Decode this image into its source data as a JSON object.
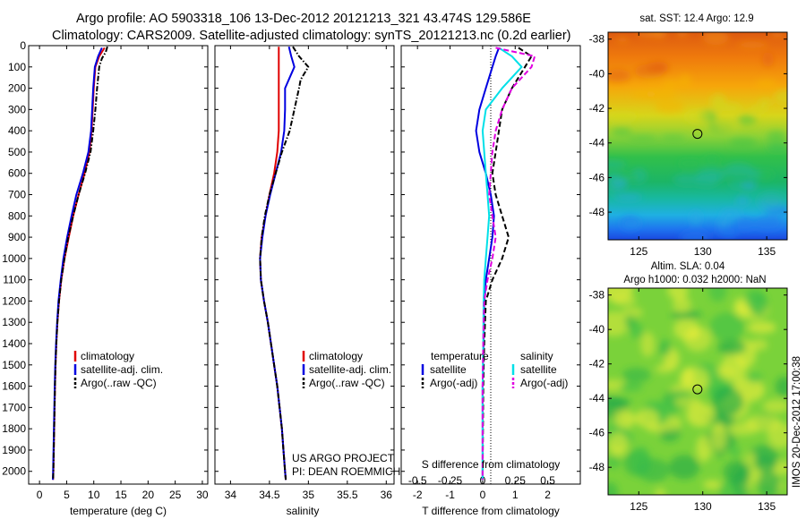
{
  "header": {
    "line1": "Argo profile: AO 5903318_106 13-Dec-2012 20121213_321 43.474S 129.586E",
    "line2": "Climatology: CARS2009. Satellite-adjusted climatology: synTS_20121213.nc (0.2d earlier)"
  },
  "credits": {
    "project": "US ARGO PROJECT",
    "pi": "PI: DEAN ROEMMICH",
    "stamp": "IMOS 20-Dec-2012 17:00:38"
  },
  "colors": {
    "climatology": "#e00000",
    "satellite": "#0000e0",
    "argo": "#000000",
    "cyan": "#00e0e8",
    "magenta": "#e000e0"
  },
  "chart_data": [
    {
      "id": "temperature",
      "type": "line",
      "xlabel": "temperature (deg C)",
      "ylabel": "",
      "xlim": [
        -2,
        31
      ],
      "ylim": [
        2060,
        0
      ],
      "xticks": [
        "0",
        "5",
        "10",
        "15",
        "20",
        "25",
        "30"
      ],
      "yticks": [
        "0",
        "100",
        "200",
        "300",
        "400",
        "500",
        "600",
        "700",
        "800",
        "900",
        "1000",
        "1100",
        "1200",
        "1300",
        "1400",
        "1500",
        "1600",
        "1700",
        "1800",
        "1900",
        "2000"
      ],
      "legend": [
        "climatology",
        "satellite-adj. clim.",
        "Argo(..raw -QC)"
      ],
      "series": [
        {
          "name": "climatology",
          "style": "solid",
          "color": "#e00000",
          "y": [
            10,
            50,
            100,
            200,
            300,
            400,
            500,
            600,
            700,
            800,
            900,
            1000,
            1100,
            1200,
            1300,
            1400,
            1500,
            1600,
            1800,
            2000,
            2040
          ],
          "x": [
            12.0,
            11.0,
            10.3,
            10.0,
            9.8,
            9.6,
            9.2,
            8.3,
            7.2,
            6.2,
            5.4,
            4.6,
            4.0,
            3.6,
            3.3,
            3.1,
            2.95,
            2.85,
            2.7,
            2.55,
            2.5
          ]
        },
        {
          "name": "satellite-adj. clim.",
          "style": "solid",
          "color": "#0000e0",
          "y": [
            10,
            50,
            100,
            200,
            300,
            400,
            500,
            600,
            700,
            800,
            900,
            1000,
            1100,
            1200,
            1300,
            1400,
            1500,
            1600,
            1800,
            2000,
            2040
          ],
          "x": [
            11.5,
            10.8,
            10.2,
            9.9,
            9.7,
            9.5,
            9.0,
            8.0,
            6.8,
            5.9,
            5.1,
            4.4,
            3.9,
            3.5,
            3.25,
            3.05,
            2.9,
            2.8,
            2.65,
            2.5,
            2.45
          ]
        },
        {
          "name": "Argo(..raw -QC)",
          "style": "dashdot",
          "color": "#000000",
          "y": [
            5,
            30,
            60,
            100,
            200,
            300,
            400,
            500,
            600,
            700,
            800,
            900,
            1000,
            1100,
            1200,
            1300,
            1400,
            1500,
            1600,
            1800,
            2000,
            2040
          ],
          "x": [
            12.5,
            12.2,
            11.5,
            11.0,
            10.6,
            10.3,
            9.9,
            9.4,
            8.4,
            7.2,
            6.2,
            5.3,
            4.6,
            4.0,
            3.6,
            3.3,
            3.1,
            2.95,
            2.85,
            2.7,
            2.55,
            2.5
          ]
        }
      ]
    },
    {
      "id": "salinity",
      "type": "line",
      "xlabel": "salinity",
      "ylabel": "",
      "xlim": [
        33.8,
        36.1
      ],
      "ylim": [
        2060,
        0
      ],
      "xticks": [
        "34",
        "34.5",
        "35",
        "35.5",
        "36"
      ],
      "legend": [
        "climatology",
        "satellite-adj. clim.",
        "Argo(..raw -QC)"
      ],
      "series": [
        {
          "name": "climatology",
          "style": "solid",
          "color": "#e00000",
          "y": [
            5,
            100,
            200,
            300,
            400,
            500,
            600,
            700,
            800,
            900,
            1000,
            1100,
            1200,
            1300,
            1400,
            1500,
            1600,
            1700,
            1800,
            1900,
            2000,
            2040
          ],
          "x": [
            34.62,
            34.62,
            34.62,
            34.62,
            34.62,
            34.6,
            34.56,
            34.5,
            34.45,
            34.4,
            34.38,
            34.39,
            34.43,
            34.48,
            34.52,
            34.56,
            34.6,
            34.63,
            34.66,
            34.68,
            34.7,
            34.71
          ]
        },
        {
          "name": "satellite-adj. clim.",
          "style": "solid",
          "color": "#0000e0",
          "y": [
            5,
            50,
            100,
            150,
            200,
            300,
            400,
            500,
            600,
            700,
            800,
            900,
            1000,
            1100,
            1200,
            1300,
            1400,
            1500,
            1600,
            1700,
            1800,
            1900,
            2000,
            2040
          ],
          "x": [
            34.75,
            34.78,
            34.82,
            34.76,
            34.7,
            34.7,
            34.69,
            34.65,
            34.58,
            34.51,
            34.45,
            34.41,
            34.38,
            34.39,
            34.43,
            34.48,
            34.52,
            34.56,
            34.6,
            34.63,
            34.66,
            34.68,
            34.7,
            34.71
          ]
        },
        {
          "name": "Argo(..raw -QC)",
          "style": "dashdot",
          "color": "#000000",
          "y": [
            5,
            50,
            100,
            130,
            160,
            200,
            300,
            400,
            500,
            600,
            700,
            800,
            900,
            1000,
            1100,
            1200,
            1300,
            1400,
            1500,
            1600,
            1700,
            1800,
            1900,
            2000,
            2040
          ],
          "x": [
            34.8,
            34.88,
            35.0,
            34.95,
            34.9,
            34.88,
            34.82,
            34.76,
            34.66,
            34.58,
            34.5,
            34.44,
            34.4,
            34.38,
            34.39,
            34.43,
            34.48,
            34.52,
            34.56,
            34.6,
            34.63,
            34.66,
            34.68,
            34.7,
            34.71
          ]
        }
      ]
    },
    {
      "id": "difference",
      "type": "line",
      "xlabel": "T difference from climatology",
      "x2label": "S difference from climatology",
      "xlim": [
        -2.5,
        3.0
      ],
      "ylim": [
        2060,
        0
      ],
      "xticks": [
        "-2",
        "-1",
        "0",
        "1",
        "2"
      ],
      "x2ticks": [
        "-0.5",
        "-0.25",
        "0",
        "0.25",
        "0.5"
      ],
      "legend_groups": [
        "temperature",
        "salinity"
      ],
      "legend": [
        "satellite",
        "Argo(-adj)",
        "satellite",
        "Argo(-adj)"
      ],
      "series": [
        {
          "name": "satellite",
          "quantity": "temperature",
          "style": "solid",
          "color": "#0000e0",
          "y": [
            10,
            50,
            100,
            200,
            300,
            400,
            500,
            600,
            700,
            800,
            900,
            1000,
            1100,
            1200,
            1400,
            1600,
            2040
          ],
          "t": [
            0.5,
            0.4,
            0.3,
            0.1,
            -0.1,
            -0.2,
            -0.1,
            0.1,
            0.25,
            0.35,
            0.3,
            0.2,
            0.1,
            0.05,
            0.03,
            0.0,
            0.0
          ]
        },
        {
          "name": "Argo(-adj)",
          "quantity": "temperature",
          "style": "dashed",
          "color": "#000000",
          "y": [
            10,
            50,
            100,
            200,
            300,
            400,
            500,
            600,
            700,
            800,
            900,
            1000,
            1100,
            1200,
            1400,
            1600,
            2040
          ],
          "t": [
            1.1,
            1.5,
            1.3,
            0.9,
            0.6,
            0.5,
            0.4,
            0.3,
            0.4,
            0.6,
            0.8,
            0.6,
            0.3,
            0.1,
            0.05,
            0.02,
            0.0
          ]
        },
        {
          "name": "satellite",
          "quantity": "salinity",
          "style": "solid",
          "color": "#00e0e8",
          "y": [
            10,
            50,
            100,
            200,
            300,
            400,
            500,
            600,
            700,
            800,
            900,
            1000,
            1100,
            1200,
            1400,
            1600,
            2040
          ],
          "t": [
            0.5,
            0.9,
            1.2,
            0.6,
            0.1,
            0.0,
            0.05,
            0.1,
            0.15,
            0.2,
            0.15,
            0.1,
            0.05,
            0.03,
            0.02,
            0.0,
            0.0
          ]
        },
        {
          "name": "Argo(-adj)",
          "quantity": "salinity",
          "style": "dashed",
          "color": "#e000e0",
          "y": [
            10,
            50,
            100,
            200,
            300,
            400,
            500,
            600,
            700,
            800,
            900,
            1000,
            1100,
            1200,
            1400,
            1600,
            2040
          ],
          "t": [
            0.4,
            1.6,
            1.5,
            0.9,
            0.6,
            0.4,
            0.3,
            0.25,
            0.2,
            0.3,
            0.4,
            0.3,
            0.15,
            0.05,
            0.02,
            0.0,
            0.0
          ]
        }
      ]
    },
    {
      "id": "sst_map",
      "type": "heatmap",
      "title": "sat. SST: 12.4  Argo: 12.9",
      "xticks": [
        "125",
        "130",
        "135"
      ],
      "yticks": [
        "-38",
        "-40",
        "-42",
        "-44",
        "-46",
        "-48"
      ],
      "xlim": [
        122.6,
        136.6
      ],
      "ylim": [
        -49.6,
        -37.6
      ],
      "marker": {
        "lon": 129.586,
        "lat": -43.474
      }
    },
    {
      "id": "sla_map",
      "type": "heatmap",
      "title": "Altim. SLA: 0.04",
      "subtitle": "Argo h1000: 0.032 h2000: NaN",
      "xticks": [
        "125",
        "130",
        "135"
      ],
      "yticks": [
        "-38",
        "-40",
        "-42",
        "-44",
        "-46",
        "-48"
      ],
      "xlim": [
        122.6,
        136.6
      ],
      "ylim": [
        -49.6,
        -37.6
      ],
      "marker": {
        "lon": 129.586,
        "lat": -43.474
      }
    }
  ]
}
